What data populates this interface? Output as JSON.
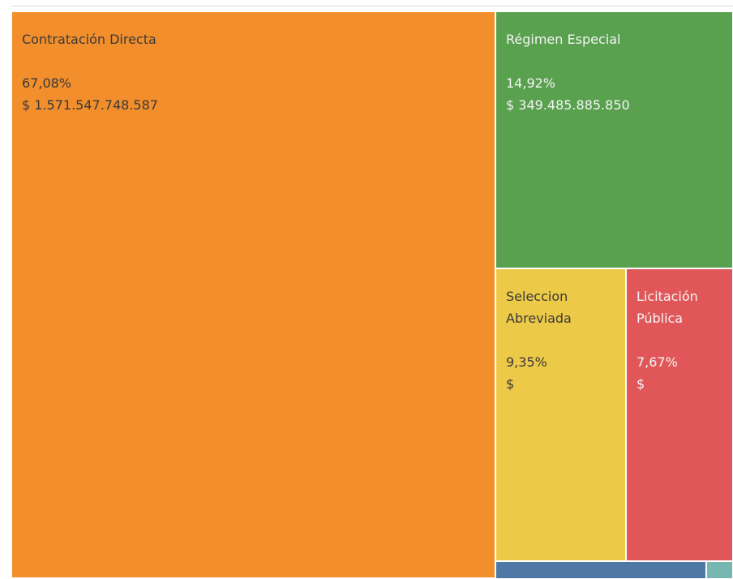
{
  "chart_data": {
    "type": "treemap",
    "categories": [
      "Contratación Directa",
      "Régimen Especial",
      "Seleccion Abreviada",
      "Licitación Pública",
      null,
      null
    ],
    "values": [
      67.08,
      14.92,
      9.35,
      7.67,
      0.87,
      0.11
    ],
    "value_labels": [
      "67,08%",
      "14,92%",
      "9,35%",
      "7,67%",
      null,
      null
    ],
    "amount_labels": [
      "$ 1.571.547.748.587",
      "$ 349.485.885.850",
      "$",
      "$",
      null,
      null
    ],
    "colors": [
      "#f28e2b",
      "#59a14f",
      "#edc948",
      "#e15759",
      "#4e79a7",
      "#76b7b2"
    ]
  }
}
